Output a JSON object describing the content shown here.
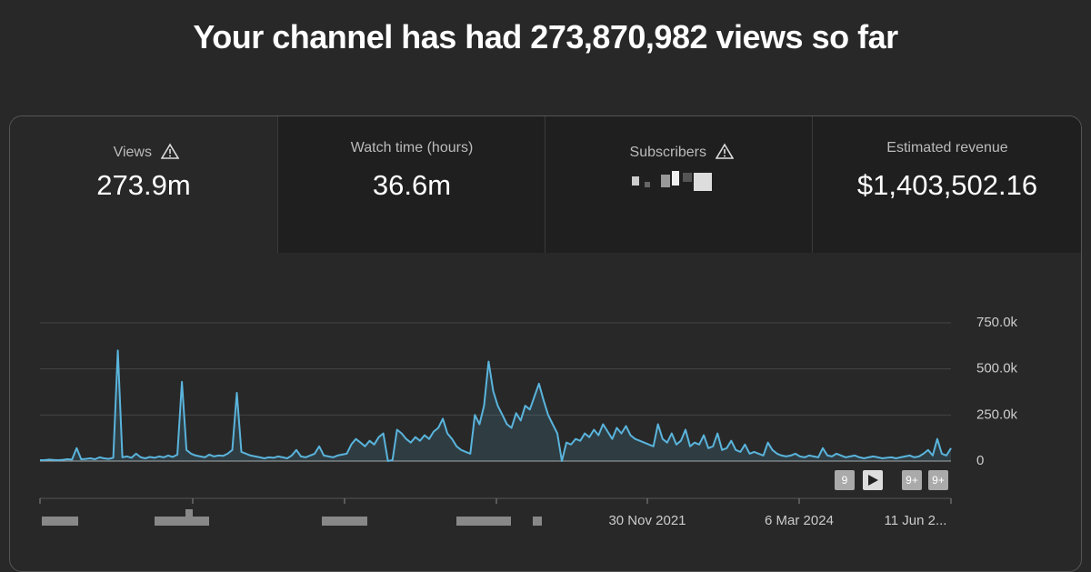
{
  "header": {
    "title": "Your channel has had 273,870,982 views so far"
  },
  "tabs": [
    {
      "label": "Views",
      "value": "273.9m"
    },
    {
      "label": "Watch time (hours)",
      "value": "36.6m"
    },
    {
      "label": "Subscribers"
    },
    {
      "label": "Estimated revenue",
      "value": "$1,403,502.16"
    }
  ],
  "chart_data": {
    "type": "line",
    "color": "#5ab4dc",
    "grid": true,
    "ylim": [
      0,
      750000
    ],
    "yticks": [
      0,
      {
        "value": 250000,
        "label": "250.0k"
      },
      {
        "value": 500000,
        "label": "500.0k"
      },
      {
        "value": 750000,
        "label": "750.0k"
      }
    ],
    "xtick_labels": [
      "30 Nov 2021",
      "6 Mar 2024",
      "11 Jun 2..."
    ],
    "badges": [
      "9",
      "9+",
      "9+"
    ],
    "values": [
      5000,
      5000,
      8000,
      6000,
      5000,
      7000,
      10000,
      8000,
      70000,
      10000,
      12000,
      15000,
      10000,
      20000,
      15000,
      12000,
      18000,
      600000,
      20000,
      25000,
      18000,
      40000,
      20000,
      15000,
      22000,
      18000,
      25000,
      20000,
      30000,
      22000,
      35000,
      430000,
      60000,
      40000,
      30000,
      25000,
      20000,
      35000,
      25000,
      30000,
      28000,
      40000,
      60000,
      370000,
      50000,
      40000,
      30000,
      25000,
      20000,
      15000,
      20000,
      18000,
      25000,
      20000,
      15000,
      30000,
      60000,
      25000,
      20000,
      30000,
      40000,
      80000,
      30000,
      25000,
      20000,
      30000,
      35000,
      40000,
      90000,
      120000,
      100000,
      80000,
      110000,
      90000,
      130000,
      150000,
      0,
      5000,
      170000,
      150000,
      120000,
      100000,
      130000,
      110000,
      140000,
      120000,
      160000,
      180000,
      230000,
      150000,
      120000,
      80000,
      60000,
      50000,
      40000,
      250000,
      200000,
      300000,
      540000,
      380000,
      300000,
      250000,
      200000,
      180000,
      260000,
      220000,
      300000,
      280000,
      350000,
      420000,
      330000,
      250000,
      200000,
      150000,
      0,
      100000,
      90000,
      120000,
      110000,
      150000,
      130000,
      170000,
      140000,
      200000,
      160000,
      120000,
      180000,
      150000,
      190000,
      140000,
      120000,
      110000,
      100000,
      90000,
      80000,
      200000,
      120000,
      100000,
      150000,
      90000,
      110000,
      170000,
      80000,
      100000,
      90000,
      140000,
      70000,
      80000,
      150000,
      60000,
      70000,
      110000,
      60000,
      50000,
      90000,
      40000,
      50000,
      40000,
      30000,
      100000,
      60000,
      40000,
      30000,
      25000,
      30000,
      40000,
      25000,
      20000,
      30000,
      25000,
      20000,
      70000,
      30000,
      25000,
      40000,
      30000,
      20000,
      25000,
      30000,
      20000,
      15000,
      20000,
      25000,
      20000,
      15000,
      18000,
      20000,
      15000,
      20000,
      25000,
      30000,
      20000,
      25000,
      40000,
      60000,
      30000,
      120000,
      40000,
      30000,
      70000
    ]
  }
}
